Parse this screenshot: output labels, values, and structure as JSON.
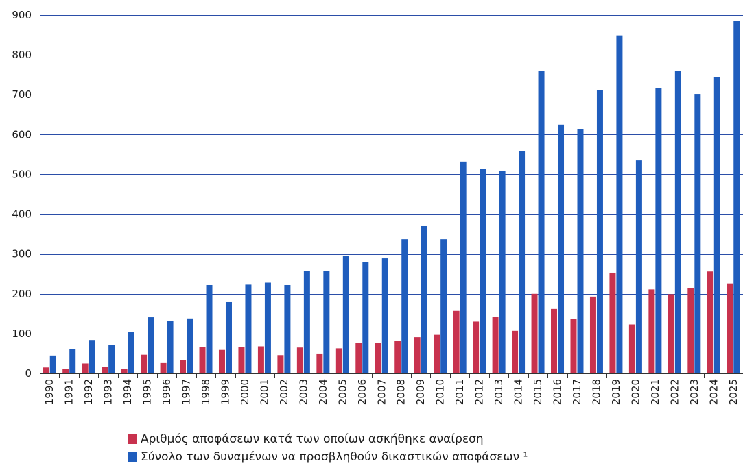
{
  "chart_data": {
    "type": "bar",
    "categories": [
      "1990",
      "1991",
      "1992",
      "1993",
      "1994",
      "1995",
      "1996",
      "1997",
      "1998",
      "1999",
      "2000",
      "2001",
      "2002",
      "2003",
      "2004",
      "2005",
      "2006",
      "2007",
      "2008",
      "2009",
      "2010",
      "2011",
      "2012",
      "2013",
      "2014",
      "2015",
      "2016",
      "2017",
      "2018",
      "2019",
      "2020",
      "2021",
      "2022",
      "2023",
      "2024",
      "2025"
    ],
    "series": [
      {
        "name": "Αριθμός αποφάσεων κατά των οποίων ασκήθηκε αναίρεση",
        "color": "#c8324e",
        "values": [
          15,
          12,
          25,
          16,
          11,
          47,
          26,
          34,
          66,
          59,
          66,
          68,
          46,
          65,
          50,
          63,
          76,
          77,
          82,
          91,
          97,
          157,
          130,
          142,
          107,
          200,
          162,
          136,
          193,
          253,
          123,
          211,
          199,
          214,
          256,
          226
        ]
      },
      {
        "name": "Σύνολο των δυναμένων να προσβληθούν δικαστικών αποφάσεων ¹",
        "color": "#1f5dbd",
        "values": [
          45,
          61,
          84,
          72,
          104,
          141,
          132,
          138,
          222,
          179,
          223,
          228,
          222,
          258,
          258,
          296,
          280,
          289,
          337,
          370,
          337,
          532,
          513,
          508,
          558,
          759,
          625,
          614,
          712,
          849,
          535,
          716,
          759,
          702,
          745,
          885
        ]
      }
    ],
    "ylim": [
      0,
      900
    ],
    "yticks": [
      0,
      100,
      200,
      300,
      400,
      500,
      600,
      700,
      800,
      900
    ],
    "grid": true,
    "legend_position": "bottom"
  }
}
